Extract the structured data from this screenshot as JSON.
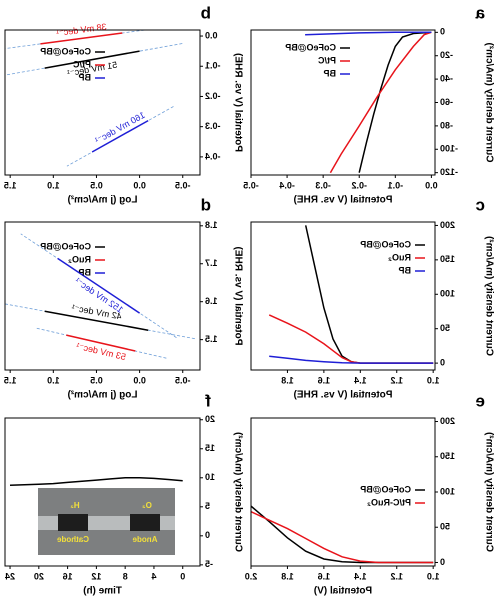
{
  "chart_data": [
    {
      "type": "line",
      "panel": "a",
      "x_label": "Potential (V vs. RHE)",
      "y_label": "Current density (mA/cm²)",
      "xlim": [
        0.01,
        -0.5
      ],
      "ylim": [
        -122,
        2
      ],
      "xticks": [
        {
          "value": 0,
          "label": "0.0"
        },
        -0.1,
        -0.2,
        -0.3,
        -0.4,
        -0.5
      ],
      "yticks": [
        0,
        -20,
        -40,
        -60,
        -80,
        -100,
        -120
      ],
      "series": [
        {
          "name": "CoFeO@BP",
          "color": "#000000",
          "x": [
            0,
            -0.05,
            -0.08,
            -0.1,
            -0.12,
            -0.14,
            -0.16,
            -0.18,
            -0.2
          ],
          "values": [
            0,
            -1,
            -4,
            -12,
            -28,
            -48,
            -70,
            -94,
            -120
          ]
        },
        {
          "name": "Pt/C",
          "color": "#e8141b",
          "x": [
            0,
            -0.02,
            -0.05,
            -0.1,
            -0.15,
            -0.2,
            -0.25,
            -0.28
          ],
          "values": [
            0,
            -2,
            -12,
            -32,
            -55,
            -80,
            -104,
            -120
          ]
        },
        {
          "name": "BP",
          "color": "#1f1fd6",
          "x": [
            0,
            -0.1,
            -0.2,
            -0.3,
            -0.35
          ],
          "values": [
            0,
            0,
            -0.5,
            -1.5,
            -2
          ]
        }
      ]
    },
    {
      "type": "line",
      "panel": "b",
      "x_label": "Log (j mA/cm²)",
      "y_label": "Potential (V vs. RHE)",
      "xlim": [
        -0.7,
        1.56
      ],
      "ylim": [
        -0.46,
        0.02
      ],
      "xticks": [
        -0.5,
        {
          "value": 0,
          "label": "0.0"
        },
        0.5,
        {
          "value": 1,
          "label": "1.0"
        },
        1.5
      ],
      "yticks": [
        {
          "value": 0,
          "label": "0.0"
        },
        -0.1,
        -0.2,
        -0.3,
        -0.4
      ],
      "series": [
        {
          "name": "CoFeO@BP",
          "color": "#000000",
          "x": [
            0.0,
            1.1
          ],
          "values": [
            -0.05,
            -0.106
          ],
          "annotation": "51 mV dec⁻¹"
        },
        {
          "name": "Pt/C",
          "color": "#e8141b",
          "x": [
            0.2,
            1.15
          ],
          "values": [
            0.01,
            -0.026
          ],
          "annotation": "38 mV dec⁻¹"
        },
        {
          "name": "BP",
          "color": "#1f1fd6",
          "x": [
            -0.1,
            0.55
          ],
          "values": [
            -0.28,
            -0.384
          ],
          "annotation": "160 mV dec⁻¹"
        }
      ]
    },
    {
      "type": "line",
      "panel": "c",
      "x_label": "Potential (V vs. RHE)",
      "y_label": "Current density (mA/cm²)",
      "xlim": [
        0.99,
        2.0
      ],
      "ylim": [
        -10,
        205
      ],
      "xticks": [
        {
          "value": 1,
          "label": "1.0"
        },
        1.2,
        1.4,
        1.6,
        1.8
      ],
      "yticks": [
        0,
        50,
        100,
        150,
        200
      ],
      "series": [
        {
          "name": "CoFeO@BP",
          "color": "#000000",
          "x": [
            1.0,
            1.4,
            1.45,
            1.5,
            1.55,
            1.6,
            1.65,
            1.7
          ],
          "values": [
            0,
            0,
            2,
            10,
            35,
            80,
            140,
            200
          ]
        },
        {
          "name": "RuO₂",
          "color": "#e8141b",
          "x": [
            1.0,
            1.4,
            1.45,
            1.5,
            1.55,
            1.6,
            1.7,
            1.8,
            1.9
          ],
          "values": [
            0,
            0,
            2,
            8,
            18,
            28,
            45,
            58,
            70
          ]
        },
        {
          "name": "BP",
          "color": "#1f1fd6",
          "x": [
            1.0,
            1.4,
            1.5,
            1.6,
            1.7,
            1.8,
            1.9
          ],
          "values": [
            0,
            0,
            0.5,
            2,
            4,
            7,
            10
          ]
        }
      ]
    },
    {
      "type": "line",
      "panel": "d",
      "x_label": "Log (j mA/cm²)",
      "y_label": "Potential (V vs. RHE)",
      "xlim": [
        -0.7,
        1.56
      ],
      "ylim": [
        1.42,
        1.81
      ],
      "xticks": [
        -0.5,
        {
          "value": 0,
          "label": "0.0"
        },
        0.5,
        {
          "value": 1,
          "label": "1.0"
        },
        1.5
      ],
      "yticks": [
        1.5,
        1.6,
        1.7,
        1.8
      ],
      "series": [
        {
          "name": "CoFeO@BP",
          "color": "#000000",
          "x": [
            -0.1,
            1.1
          ],
          "values": [
            1.525,
            1.575
          ],
          "annotation": "42 mV dec⁻¹"
        },
        {
          "name": "RuO₂",
          "color": "#e8141b",
          "x": [
            0.05,
            0.85
          ],
          "values": [
            1.47,
            1.512
          ],
          "annotation": "53 mV dec⁻¹"
        },
        {
          "name": "BP",
          "color": "#1f1fd6",
          "x": [
            0.0,
            0.95
          ],
          "values": [
            1.57,
            1.714
          ],
          "annotation": "152 mV dec⁻¹"
        }
      ]
    },
    {
      "type": "line",
      "panel": "e",
      "x_label": "Potential (V)",
      "y_label": "Current density (mA/cm²)",
      "xlim": [
        0.99,
        2.0
      ],
      "ylim": [
        -5,
        205
      ],
      "xticks": [
        {
          "value": 1,
          "label": "1.0"
        },
        1.2,
        1.4,
        1.6,
        1.8,
        {
          "value": 2,
          "label": "2.0"
        }
      ],
      "yticks": [
        0,
        50,
        100,
        150,
        200
      ],
      "series": [
        {
          "name": "CoFeO@BP",
          "color": "#000000",
          "x": [
            1.0,
            1.4,
            1.5,
            1.6,
            1.7,
            1.8,
            1.9,
            2.0
          ],
          "values": [
            0,
            0,
            1,
            5,
            16,
            35,
            58,
            80
          ]
        },
        {
          "name": "Pt/C-RuO₂",
          "color": "#e8141b",
          "x": [
            1.0,
            1.3,
            1.4,
            1.5,
            1.6,
            1.7,
            1.8,
            1.9,
            2.0
          ],
          "values": [
            0,
            0,
            2,
            8,
            20,
            34,
            48,
            60,
            72
          ]
        }
      ]
    },
    {
      "type": "line",
      "panel": "f",
      "x_label": "Time (h)",
      "y_label": "Current density (mA/cm²)",
      "xlim": [
        -2.4,
        24.7
      ],
      "ylim": [
        -5.2,
        20.3
      ],
      "xticks": [
        0,
        4,
        8,
        12,
        16,
        20,
        24
      ],
      "yticks": [
        -5,
        0,
        5,
        10,
        15,
        20
      ],
      "series": [
        {
          "color": "#000000",
          "x": [
            0,
            2,
            4,
            6,
            8,
            10,
            12,
            14,
            16,
            18,
            20,
            22,
            24
          ],
          "values": [
            9.5,
            9.7,
            9.9,
            10,
            10,
            9.8,
            9.6,
            9.4,
            9.2,
            9.0,
            8.9,
            8.8,
            8.7
          ]
        }
      ],
      "inset": {
        "h2": "H₂",
        "o2": "O₂",
        "cathode": "Cathode",
        "anode": "Anode"
      }
    }
  ]
}
